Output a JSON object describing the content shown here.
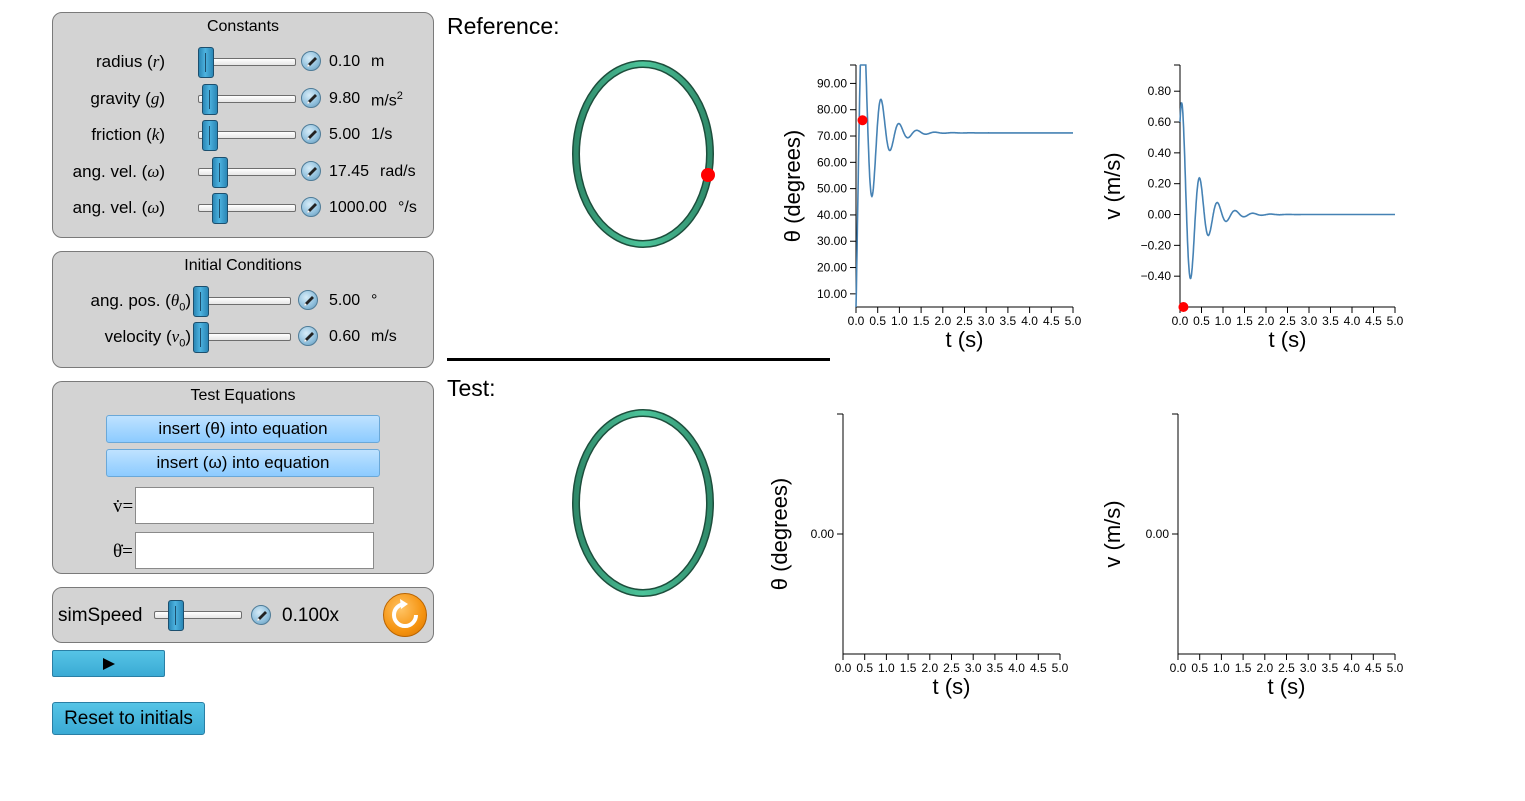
{
  "constants": {
    "title": "Constants",
    "rows": [
      {
        "label": "radius (",
        "sym": "r",
        "suffix": ")",
        "value": "0.10",
        "unit": "m",
        "unit_sup": "",
        "level": 0.0
      },
      {
        "label": "gravity (",
        "sym": "g",
        "suffix": ")",
        "value": "9.80",
        "unit": "m/s",
        "unit_sup": "2",
        "level": 0.05
      },
      {
        "label": "friction (",
        "sym": "k",
        "suffix": ")",
        "value": "5.00",
        "unit": "1/s",
        "unit_sup": "",
        "level": 0.05
      },
      {
        "label": "ang. vel. (",
        "sym": "ω",
        "suffix": ")",
        "value": "17.45",
        "unit": "rad/s",
        "unit_sup": "",
        "level": 0.17
      },
      {
        "label": "ang. vel. (",
        "sym": "ω",
        "suffix": ")",
        "value": "1000.00",
        "unit": "°/s",
        "unit_sup": "",
        "level": 0.17
      }
    ]
  },
  "initial_conditions": {
    "title": "Initial Conditions",
    "rows": [
      {
        "label": "ang. pos. (",
        "sym": "θ",
        "sub": "0",
        "suffix": ")",
        "value": "5.00",
        "unit": "°",
        "level": 0.0
      },
      {
        "label": "velocity (",
        "sym": "v",
        "sub": "0",
        "suffix": ")",
        "value": "0.60",
        "unit": "m/s",
        "level": 0.0
      }
    ]
  },
  "test_equations": {
    "title": "Test Equations",
    "insert_theta_label": "insert (θ) into equation",
    "insert_omega_label": "insert (ω) into equation",
    "vdot_label": "v̇=",
    "thetadot_label": "θ̇=",
    "vdot_value": "",
    "thetadot_value": ""
  },
  "sim_speed": {
    "label": "simSpeed",
    "value": "0.100x",
    "level": 0.2
  },
  "reset_label": "Reset to initials",
  "reference_label": "Reference:",
  "test_label": "Test:",
  "colors": {
    "ring": "#3fae8a",
    "ring_dark": "#1d4e3c",
    "bead": "#ff0000",
    "curve": "#4682b4",
    "panel": "#d3d3d3",
    "button_blue": "#3aaad4",
    "button_light": "#8ccbff",
    "reload": "#f5930f"
  },
  "icons": [
    "edit-icon",
    "play-icon",
    "reload-icon"
  ],
  "chart_data": [
    {
      "type": "line",
      "panel": "reference",
      "xlabel": "t (s)",
      "ylabel": "θ (degrees)",
      "xlim": [
        0,
        5.0
      ],
      "ylim": [
        5,
        97
      ],
      "xticks": [
        "0.0",
        "0.5",
        "1.0",
        "1.5",
        "2.0",
        "2.5",
        "3.0",
        "3.5",
        "4.0",
        "4.5",
        "5.0"
      ],
      "yticks": [
        "10.00",
        "20.00",
        "30.00",
        "40.00",
        "50.00",
        "60.00",
        "70.00",
        "80.00",
        "90.00"
      ],
      "curve": {
        "initial": 5,
        "final": 71.2,
        "amplitude": 24,
        "decay": 3.1,
        "omega": 15.2,
        "phase": 1.5708
      },
      "marker": {
        "x": 0.15,
        "y": 76
      }
    },
    {
      "type": "line",
      "panel": "reference",
      "xlabel": "t (s)",
      "ylabel": "v (m/s)",
      "xlim": [
        0,
        5.0
      ],
      "ylim": [
        -0.6,
        0.97
      ],
      "xticks": [
        "0.0",
        "0.5",
        "1.0",
        "1.5",
        "2.0",
        "2.5",
        "3.0",
        "3.5",
        "4.0",
        "4.5",
        "5.0"
      ],
      "yticks": [
        "0.80",
        "0.60",
        "0.40",
        "0.20",
        "0.00",
        "−0.20",
        "−0.40"
      ],
      "curve": {
        "initial": 0.6,
        "final": 0,
        "amplitude": 1.0,
        "decay": 2.7,
        "omega": 15.2,
        "phase": 0.45
      },
      "marker": {
        "x": 0.08,
        "y": -0.6
      }
    },
    {
      "type": "line",
      "panel": "test",
      "xlabel": "t (s)",
      "ylabel": "θ (degrees)",
      "xlim": [
        0,
        5.0
      ],
      "ylim": [
        -1,
        1
      ],
      "xticks": [
        "0.0",
        "0.5",
        "1.0",
        "1.5",
        "2.0",
        "2.5",
        "3.0",
        "3.5",
        "4.0",
        "4.5",
        "5.0"
      ],
      "yticks": [
        "0.00"
      ]
    },
    {
      "type": "line",
      "panel": "test",
      "xlabel": "t (s)",
      "ylabel": "v (m/s)",
      "xlim": [
        0,
        5.0
      ],
      "ylim": [
        -1,
        1
      ],
      "xticks": [
        "0.0",
        "0.5",
        "1.0",
        "1.5",
        "2.0",
        "2.5",
        "3.0",
        "3.5",
        "4.0",
        "4.5",
        "5.0"
      ],
      "yticks": [
        "0.00"
      ]
    }
  ]
}
